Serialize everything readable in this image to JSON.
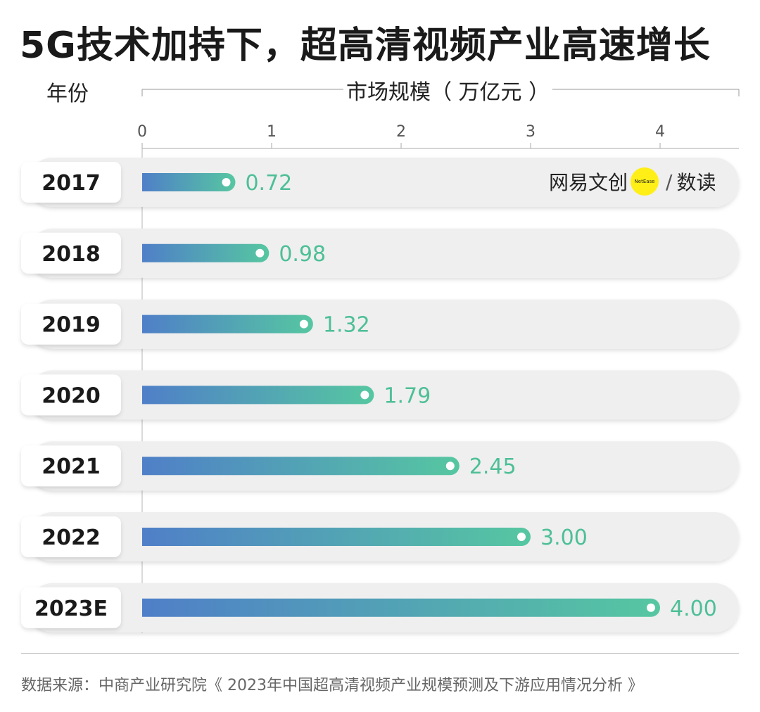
{
  "title": "5G技术加持下，超高清视频产业高速增长",
  "year_header": "年份",
  "source": "数据来源：中商产业研究院《 2023年中国超高清视频产业规模预测及下游应用情况分析 》",
  "logo": {
    "text": "网易文创",
    "badge": "NetEase",
    "suffix": "数读"
  },
  "colors": {
    "bar_start": "#4f7fc8",
    "bar_end": "#56c7a1",
    "value_label": "#4dbf96",
    "row_bg": "#efefef"
  },
  "chart_data": {
    "type": "bar",
    "orientation": "horizontal",
    "xlabel": "市场规模（ 万亿元 ）",
    "ylabel": "年份",
    "xlim": [
      0,
      4.6
    ],
    "xticks": [
      0,
      1,
      2,
      3,
      4
    ],
    "categories": [
      "2017",
      "2018",
      "2019",
      "2020",
      "2021",
      "2022",
      "2023E"
    ],
    "values": [
      0.72,
      0.98,
      1.32,
      1.79,
      2.45,
      3.0,
      4.0
    ],
    "value_labels": [
      "0.72",
      "0.98",
      "1.32",
      "1.79",
      "2.45",
      "3.00",
      "4.00"
    ],
    "grid": false,
    "legend": "none"
  }
}
